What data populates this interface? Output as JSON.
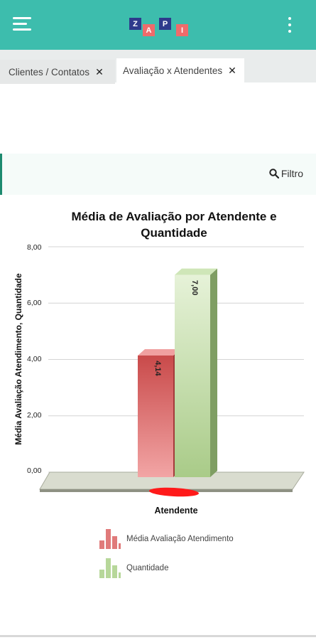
{
  "app": {
    "logo_letters": [
      "Z",
      "A",
      "P",
      "I"
    ],
    "colors": {
      "appbar": "#3dbdad",
      "accent": "#1d8a6f",
      "logo_blue": "#2e3a8c",
      "logo_red": "#ef6b6b"
    }
  },
  "tabs": [
    {
      "label": "Clientes / Contatos",
      "close": "✕",
      "active": false
    },
    {
      "label": "Avaliação x Atendentes",
      "close": "✕",
      "active": true
    }
  ],
  "filter": {
    "label": "Filtro",
    "icon": "search-icon"
  },
  "chart_data": {
    "type": "bar",
    "title": "Média de Avaliação por Atendente e Quantidade",
    "xlabel": "Atendente",
    "ylabel": "Média Avaliação Atendimento, Quantidade",
    "ylim": [
      0,
      8
    ],
    "yticks": [
      "0,00",
      "2,00",
      "4,00",
      "6,00",
      "8,00"
    ],
    "grid": true,
    "legend_position": "bottom",
    "categories": [
      ""
    ],
    "series": [
      {
        "name": "Média Avaliação Atendimento",
        "values": [
          4.14
        ],
        "label": "4,14",
        "color": "#e07a7a"
      },
      {
        "name": "Quantidade",
        "values": [
          7.0
        ],
        "label": "7,00",
        "color": "#b7d79a"
      }
    ]
  }
}
